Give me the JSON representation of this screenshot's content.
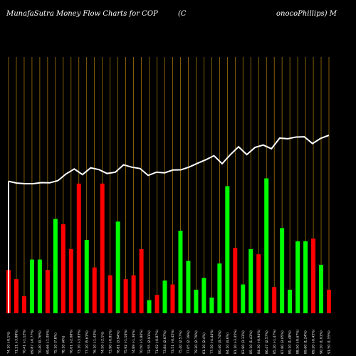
{
  "chart_data": {
    "type": "bar",
    "title_left": "MunafaSutra  Money Flow  Charts for COP",
    "title_mid": "(C",
    "title_right": "onocoPhillips) M",
    "colors": {
      "background": "#000000",
      "up": "#00ff00",
      "down": "#ff0000",
      "line": "#ffffff",
      "grid": "#b8860b"
    },
    "grid": true,
    "ylim": [
      0,
      100
    ],
    "bars": [
      {
        "label": "74.10 (-0.1%)",
        "value": 33,
        "dir": "down"
      },
      {
        "label": "71.21 (-3.88%)",
        "value": 26,
        "dir": "down"
      },
      {
        "label": "70.41 (-1.12%)",
        "value": 13,
        "dir": "down"
      },
      {
        "label": "69.87 (-0.77%)",
        "value": 41,
        "dir": "up"
      },
      {
        "label": "70.40 (0.76%)",
        "value": 41,
        "dir": "up"
      },
      {
        "label": "69.66 (-1.05%)",
        "value": 33,
        "dir": "down"
      },
      {
        "label": "75.10 (7.8%)",
        "value": 72,
        "dir": "up"
      },
      {
        "label": "78.10 (4%)",
        "value": 68,
        "dir": "down"
      },
      {
        "label": "76.01 (-2.68%)",
        "value": 49,
        "dir": "down"
      },
      {
        "label": "73.10 (-3.83%)",
        "value": 99,
        "dir": "down"
      },
      {
        "label": "77.20 (5.61%)",
        "value": 56,
        "dir": "up"
      },
      {
        "label": "76.10 (-1.42%)",
        "value": 35,
        "dir": "down"
      },
      {
        "label": "74.50 (-2.1%)",
        "value": 99,
        "dir": "down"
      },
      {
        "label": "73.90 (-0.81%)",
        "value": 29,
        "dir": "down"
      },
      {
        "label": "76.81 (3.94%)",
        "value": 70,
        "dir": "up"
      },
      {
        "label": "75.92 (-1.16%)",
        "value": 26,
        "dir": "down"
      },
      {
        "label": "74.89 (-1.36%)",
        "value": 29,
        "dir": "down"
      },
      {
        "label": "70.50 (-5.86%)",
        "value": 49,
        "dir": "down"
      },
      {
        "label": "72.55 (2.91%)",
        "value": 10,
        "dir": "up"
      },
      {
        "label": "71.92 (-0.87%)",
        "value": 14,
        "dir": "down"
      },
      {
        "label": "73.84 (2.67%)",
        "value": 25,
        "dir": "up"
      },
      {
        "label": "73.51 (-0.45%)",
        "value": 22,
        "dir": "down"
      },
      {
        "label": "75.40 (2.57%)",
        "value": 63,
        "dir": "up"
      },
      {
        "label": "77.05 (2.19%)",
        "value": 40,
        "dir": "up"
      },
      {
        "label": "79.20 (2.79%)",
        "value": 18,
        "dir": "up"
      },
      {
        "label": "81.10 (2.4%)",
        "value": 27,
        "dir": "up"
      },
      {
        "label": "77.50 (-4.44%)",
        "value": 12,
        "dir": "up"
      },
      {
        "label": "80.40 (3.74%)",
        "value": 38,
        "dir": "up"
      },
      {
        "label": "84.10 (4.6%)",
        "value": 97,
        "dir": "up"
      },
      {
        "label": "81.20 (-3.45%)",
        "value": 50,
        "dir": "down"
      },
      {
        "label": "83.90 (3.33%)",
        "value": 22,
        "dir": "up"
      },
      {
        "label": "85.10 (1.43%)",
        "value": 49,
        "dir": "up"
      },
      {
        "label": "84.30 (-0.94%)",
        "value": 45,
        "dir": "down"
      },
      {
        "label": "86.47 (2.57%)",
        "value": 103,
        "dir": "up"
      },
      {
        "label": "85.20 (-1.47%)",
        "value": 20,
        "dir": "down"
      },
      {
        "label": "87.80 (3.05%)",
        "value": 65,
        "dir": "up"
      },
      {
        "label": "89.10 (1.48%)",
        "value": 18,
        "dir": "up"
      },
      {
        "label": "88.50 (-0.67%)",
        "value": 55,
        "dir": "up"
      },
      {
        "label": "89.60 (1.24%)",
        "value": 55,
        "dir": "up"
      },
      {
        "label": "89.20 (-0.45%)",
        "value": 57,
        "dir": "down"
      },
      {
        "label": "90.10 (1.01%)",
        "value": 37,
        "dir": "up"
      },
      {
        "label": "91.50 (1.55%)",
        "value": 18,
        "dir": "down"
      }
    ],
    "line_values": [
      74.1,
      73.3,
      73.0,
      73.0,
      73.5,
      73.4,
      74.4,
      77.5,
      79.8,
      77.2,
      80.3,
      79.5,
      77.7,
      78.3,
      81.7,
      80.6,
      80.0,
      76.8,
      78.3,
      78.0,
      79.3,
      79.4,
      80.7,
      82.4,
      84.0,
      85.9,
      82.2,
      86.4,
      90.0,
      86.4,
      89.7,
      90.8,
      89.1,
      94.0,
      93.7,
      94.5,
      94.6,
      91.5,
      93.9,
      95.3
    ]
  }
}
